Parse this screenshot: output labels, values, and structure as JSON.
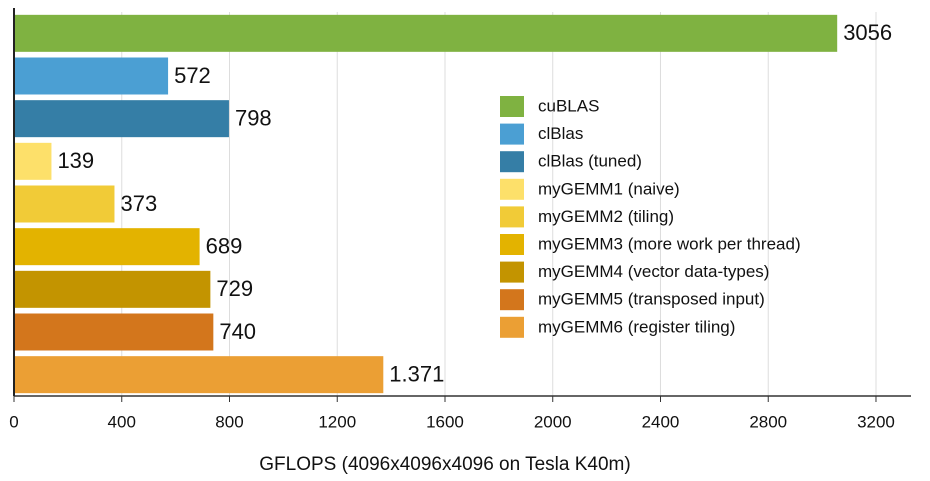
{
  "chart_data": {
    "type": "bar",
    "orientation": "horizontal",
    "categories": [
      "cuBLAS",
      "clBlas",
      "clBlas (tuned)",
      "myGEMM1 (naive)",
      "myGEMM2 (tiling)",
      "myGEMM3 (more work per thread)",
      "myGEMM4 (vector data-types)",
      "myGEMM5 (transposed input)",
      "myGEMM6 (register tiling)"
    ],
    "values": [
      3056,
      572,
      798,
      139,
      373,
      689,
      729,
      740,
      1371
    ],
    "value_labels": [
      "3056",
      "572",
      "798",
      "139",
      "373",
      "689",
      "729",
      "740",
      "1.371"
    ],
    "colors": [
      "#7fb241",
      "#4b9fd3",
      "#357ea6",
      "#fde06a",
      "#f1cb37",
      "#e3b300",
      "#c39400",
      "#d3761c",
      "#eb9f34"
    ],
    "xlabel": "GFLOPS (4096x4096x4096 on Tesla K40m)",
    "xlim": [
      0,
      3330
    ],
    "xticks": [
      0,
      400,
      800,
      1200,
      1600,
      2000,
      2400,
      2800,
      3200
    ],
    "grid": true
  }
}
